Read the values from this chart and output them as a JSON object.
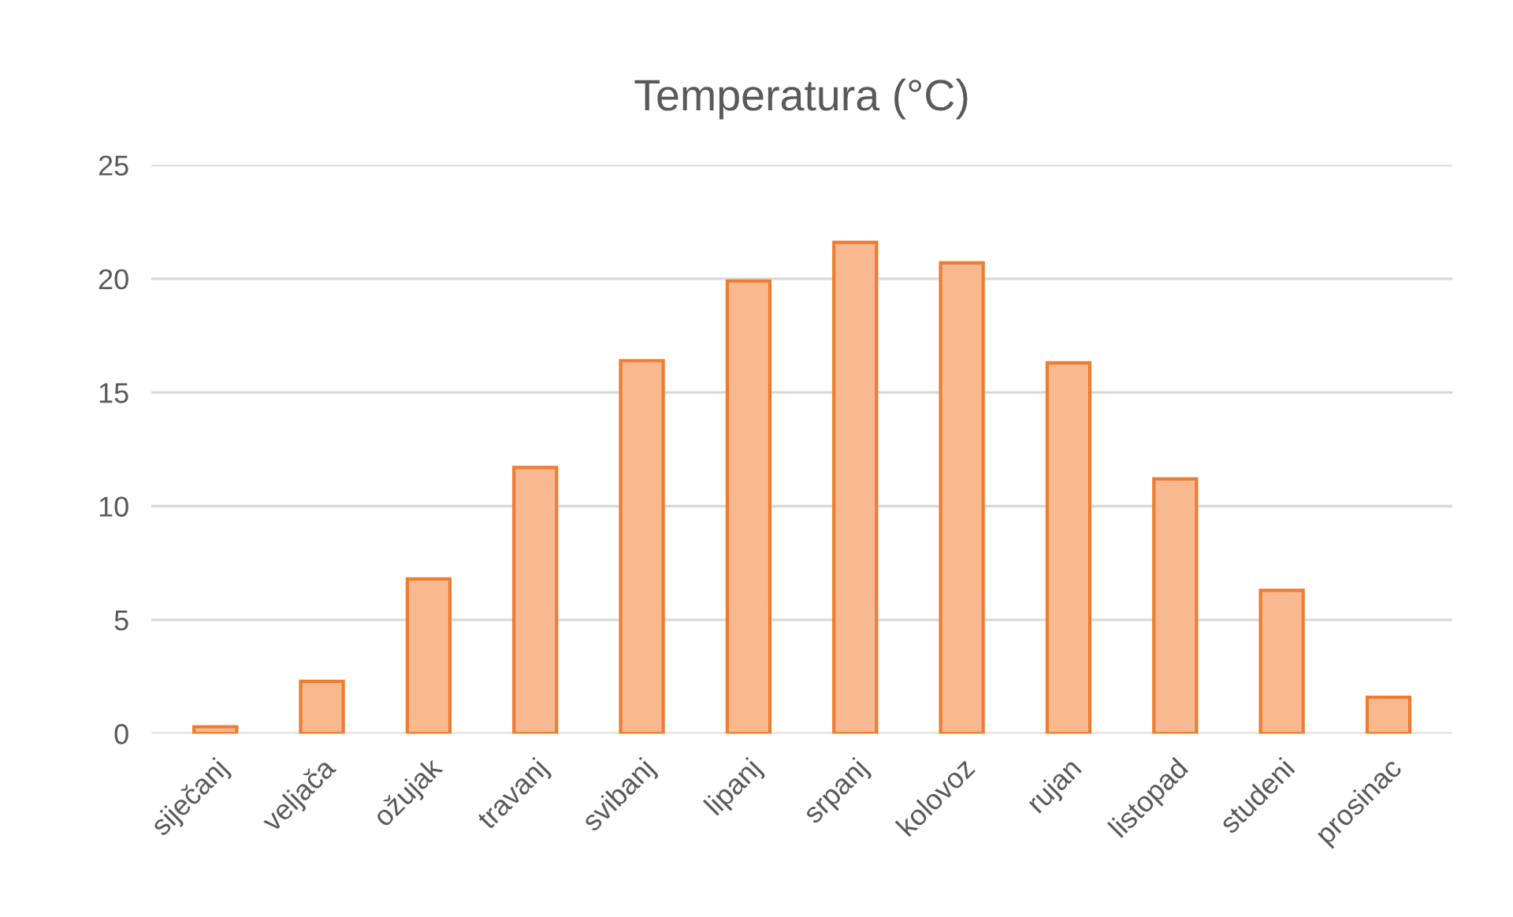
{
  "chart_data": {
    "type": "bar",
    "title": "Temperatura (°C)",
    "categories": [
      "siječanj",
      "veljača",
      "ožujak",
      "travanj",
      "svibanj",
      "lipanj",
      "srpanj",
      "kolovoz",
      "rujan",
      "listopad",
      "studeni",
      "prosinac"
    ],
    "values": [
      0.3,
      2.3,
      6.8,
      11.7,
      16.4,
      19.9,
      21.6,
      20.7,
      16.3,
      11.2,
      6.3,
      1.6
    ],
    "color": "#f8b890",
    "ylim": [
      0,
      25
    ],
    "yticks": [
      0,
      5,
      10,
      15,
      20,
      25
    ],
    "grid": "y"
  }
}
